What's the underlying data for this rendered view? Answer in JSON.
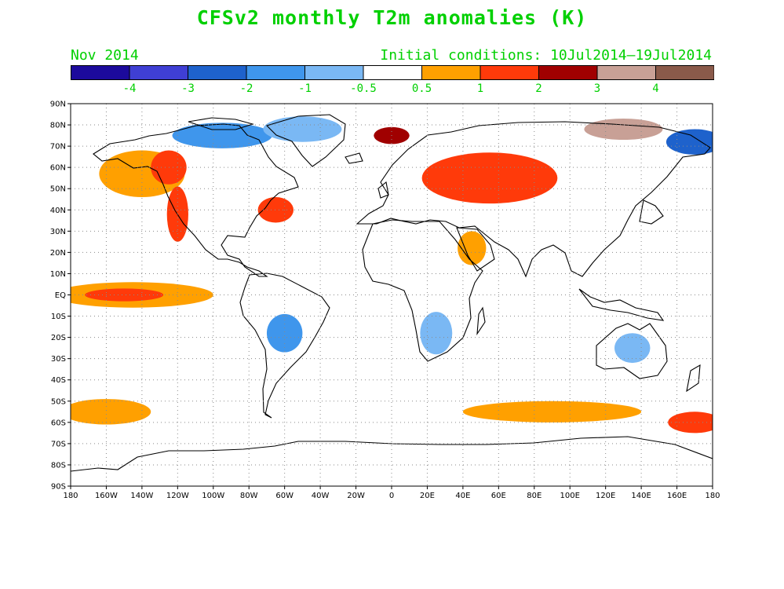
{
  "title": "CFSv2 monthly T2m anomalies (K)",
  "subtitle_left": "Nov 2014",
  "subtitle_right": "Initial conditions: 10Jul2014–19Jul2014",
  "colors": {
    "title_green": "#00d000",
    "bins": [
      "#1c0a9c",
      "#3f3fd4",
      "#1e62cc",
      "#3f96ec",
      "#7ab8f4",
      "#ffffff",
      "#ffa000",
      "#ff3a0a",
      "#a00000",
      "#c8a096",
      "#8a5a4a"
    ]
  },
  "colorbar": {
    "labels": [
      "-4",
      "-3",
      "-2",
      "-1",
      "-0.5",
      "0.5",
      "1",
      "2",
      "3",
      "4"
    ]
  },
  "map": {
    "lon_range": [
      -180,
      180
    ],
    "lat_range": [
      -90,
      90
    ],
    "lat_ticks": [
      "90N",
      "80N",
      "70N",
      "60N",
      "50N",
      "40N",
      "30N",
      "20N",
      "10N",
      "EQ",
      "10S",
      "20S",
      "30S",
      "40S",
      "50S",
      "60S",
      "70S",
      "80S",
      "90S"
    ],
    "lon_ticks": [
      "180",
      "160W",
      "140W",
      "120W",
      "100W",
      "80W",
      "60W",
      "40W",
      "20W",
      "0",
      "20E",
      "40E",
      "60E",
      "80E",
      "100E",
      "120E",
      "140E",
      "160E",
      "180"
    ],
    "grid": "dotted",
    "anomaly_regions": [
      {
        "region": "North Pacific / Alaska",
        "lon": -140,
        "lat": 57,
        "rlon": 24,
        "rlat": 11,
        "level": 6
      },
      {
        "region": "Northwest Canada",
        "lon": -125,
        "lat": 60,
        "rlon": 10,
        "rlat": 8,
        "level": 7
      },
      {
        "region": "US west coast",
        "lon": -120,
        "lat": 38,
        "rlon": 6,
        "rlat": 13,
        "level": 7
      },
      {
        "region": "Tropical east Pacific",
        "lon": -145,
        "lat": 0,
        "rlon": 45,
        "rlat": 6,
        "level": 6
      },
      {
        "region": "Equatorial Pacific core",
        "lon": -150,
        "lat": 0,
        "rlon": 22,
        "rlat": 3,
        "level": 7
      },
      {
        "region": "US east coast",
        "lon": -65,
        "lat": 40,
        "rlon": 10,
        "rlat": 6,
        "level": 7
      },
      {
        "region": "Canadian Arctic",
        "lon": -95,
        "lat": 75,
        "rlon": 28,
        "rlat": 6,
        "level": 3
      },
      {
        "region": "Greenland",
        "lon": -50,
        "lat": 78,
        "rlon": 22,
        "rlat": 6,
        "level": 4
      },
      {
        "region": "Western Russia",
        "lon": 55,
        "lat": 55,
        "rlon": 38,
        "rlat": 12,
        "level": 7
      },
      {
        "region": "Barents Sea",
        "lon": 0,
        "lat": 75,
        "rlon": 10,
        "rlat": 4,
        "level": 8
      },
      {
        "region": "East Siberian Sea",
        "lon": 130,
        "lat": 78,
        "rlon": 22,
        "rlat": 5,
        "level": 9
      },
      {
        "region": "Chukchi / Bering",
        "lon": 170,
        "lat": 72,
        "rlon": 16,
        "rlat": 6,
        "level": 2
      },
      {
        "region": "Arabia",
        "lon": 45,
        "lat": 22,
        "rlon": 8,
        "rlat": 8,
        "level": 6
      },
      {
        "region": "South America",
        "lon": -60,
        "lat": -18,
        "rlon": 10,
        "rlat": 9,
        "level": 3
      },
      {
        "region": "Southern Africa",
        "lon": 25,
        "lat": -18,
        "rlon": 9,
        "rlat": 10,
        "level": 4
      },
      {
        "region": "Australia",
        "lon": 135,
        "lat": -25,
        "rlon": 10,
        "rlat": 7,
        "level": 4
      },
      {
        "region": "South Pacific 60S",
        "lon": -160,
        "lat": -55,
        "rlon": 25,
        "rlat": 6,
        "level": 6
      },
      {
        "region": "Southern Ocean 60S",
        "lon": 90,
        "lat": -55,
        "rlon": 50,
        "rlat": 5,
        "level": 6
      },
      {
        "region": "Southern Ocean east",
        "lon": 170,
        "lat": -60,
        "rlon": 15,
        "rlat": 5,
        "level": 7
      }
    ]
  }
}
